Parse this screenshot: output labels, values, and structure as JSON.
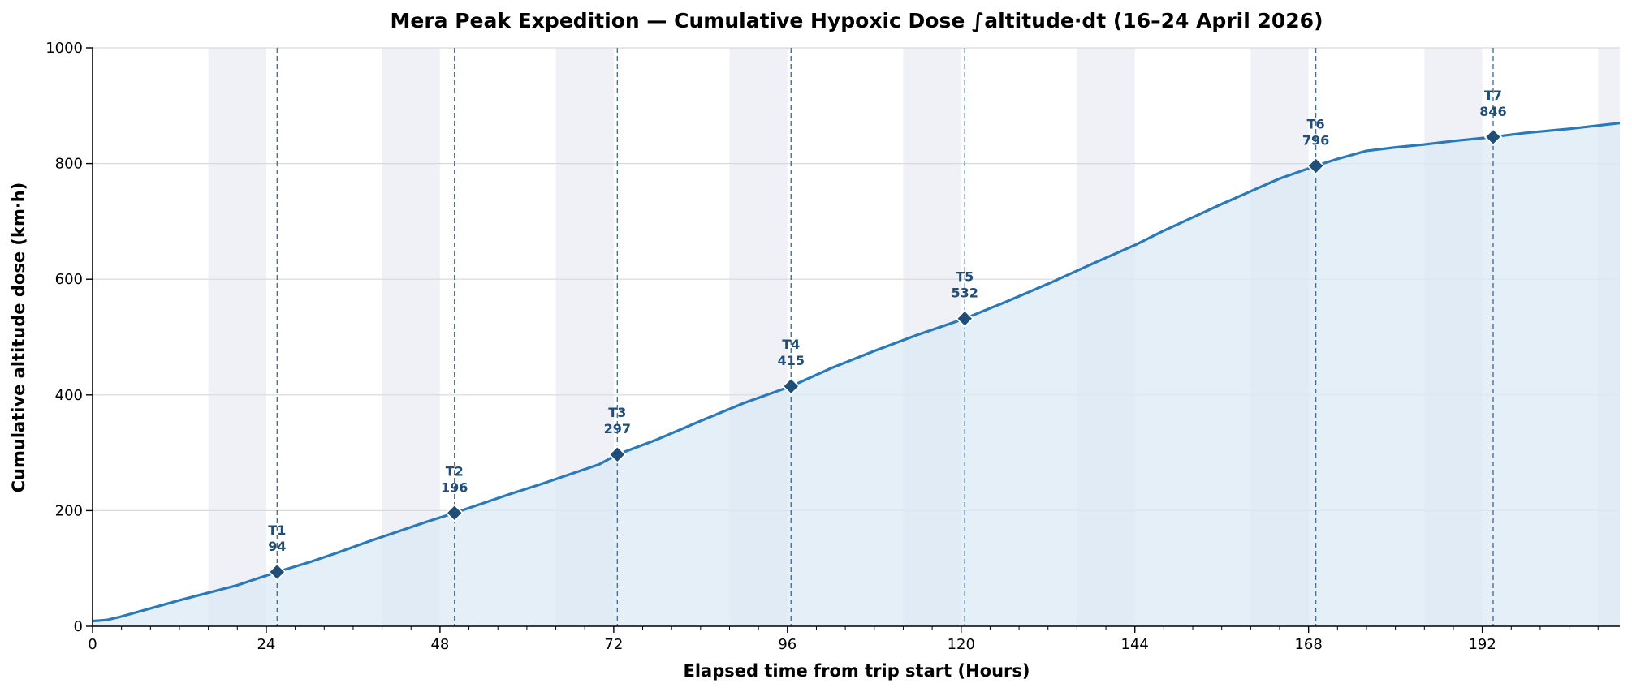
{
  "chart_data": {
    "type": "area",
    "title": "Mera Peak Expedition — Cumulative Hypoxic Dose ∫altitude·dt (16–24 April 2026)",
    "xlabel": "Elapsed time from trip start (Hours)",
    "ylabel": "Cumulative altitude dose (km·h)",
    "xlim": [
      0,
      211
    ],
    "ylim": [
      0,
      1000
    ],
    "x_ticks": [
      0,
      24,
      48,
      72,
      96,
      120,
      144,
      168,
      192
    ],
    "y_ticks": [
      0,
      200,
      400,
      600,
      800,
      1000
    ],
    "grid": "horizontal",
    "night_bands": [
      [
        16,
        24
      ],
      [
        40,
        48
      ],
      [
        64,
        72
      ],
      [
        88,
        96
      ],
      [
        112,
        120
      ],
      [
        136,
        144
      ],
      [
        160,
        168
      ],
      [
        184,
        192
      ],
      [
        208,
        211
      ]
    ],
    "series": [
      {
        "x": [
          0,
          2,
          4,
          8,
          12,
          16,
          20,
          25.5,
          30,
          34,
          38,
          42,
          46,
          50,
          54,
          58,
          62,
          66,
          70,
          72.5,
          78,
          84,
          90,
          96.5,
          102,
          108,
          114,
          120.5,
          126,
          132,
          138,
          144,
          148,
          152,
          156,
          160,
          164,
          169,
          172,
          176,
          180,
          184,
          188,
          193.5,
          198,
          204,
          211
        ],
        "y": [
          9,
          11,
          17,
          31,
          45,
          58,
          71,
          94,
          111,
          128,
          146,
          163,
          180,
          196,
          213,
          230,
          246,
          263,
          280,
          297,
          323,
          355,
          386,
          415,
          446,
          476,
          504,
          532,
          560,
          592,
          626,
          659,
          684,
          707,
          730,
          752,
          774,
          796,
          808,
          822,
          828,
          833,
          839,
          846,
          853,
          860,
          870
        ]
      }
    ],
    "markers": [
      {
        "label": "T1",
        "x": 25.5,
        "value": 94
      },
      {
        "label": "T2",
        "x": 50,
        "value": 196
      },
      {
        "label": "T3",
        "x": 72.5,
        "value": 297
      },
      {
        "label": "T4",
        "x": 96.5,
        "value": 415
      },
      {
        "label": "T5",
        "x": 120.5,
        "value": 532
      },
      {
        "label": "T6",
        "x": 169,
        "value": 796
      },
      {
        "label": "T7",
        "x": 193.5,
        "value": 846
      }
    ],
    "colors": {
      "line": "#2a7ab9",
      "fill": "#dbe9f4",
      "marker": "#1f4e79",
      "band": "#e8e8f2",
      "vline": "#4a6f96"
    }
  }
}
